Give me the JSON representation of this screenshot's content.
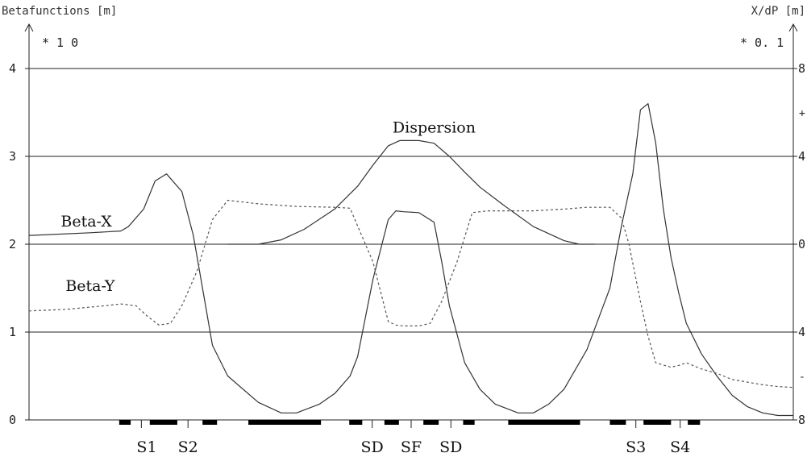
{
  "chart_data": {
    "type": "line",
    "title": "",
    "left_axis": {
      "label": "Betafunctions [m]",
      "multiplier": "* 1 0",
      "ylim": [
        0,
        4.4
      ],
      "ticks": [
        "0",
        "1",
        "2",
        "3",
        "4"
      ]
    },
    "right_axis": {
      "label": "X/dP [m]",
      "multiplier": "* 0. 1",
      "ticks": [
        "8",
        "4",
        "0",
        "4",
        "8"
      ],
      "minor_marks": [
        "+",
        "-"
      ]
    },
    "grid": true,
    "xlim": [
      0,
      100
    ],
    "series": [
      {
        "name": "Beta-X",
        "style": "solid",
        "x": [
          0,
          8,
          12,
          13,
          15,
          16.5,
          18,
          20,
          21.5,
          22.7,
          24,
          26,
          30,
          33,
          35,
          38,
          40,
          42,
          43,
          45,
          47,
          48,
          49,
          51,
          53,
          54,
          55,
          57,
          59,
          61,
          64,
          66,
          68,
          70,
          73,
          76,
          77.5,
          79,
          80,
          81,
          82,
          83,
          84,
          85,
          86,
          88,
          90,
          92,
          94,
          96,
          98,
          100
        ],
        "y": [
          2.1,
          2.13,
          2.15,
          2.2,
          2.4,
          2.72,
          2.8,
          2.6,
          2.1,
          1.5,
          0.85,
          0.5,
          0.2,
          0.08,
          0.08,
          0.18,
          0.3,
          0.5,
          0.72,
          1.6,
          2.28,
          2.38,
          2.37,
          2.36,
          2.25,
          1.8,
          1.3,
          0.65,
          0.35,
          0.18,
          0.08,
          0.08,
          0.18,
          0.35,
          0.8,
          1.5,
          2.2,
          2.8,
          3.53,
          3.6,
          3.15,
          2.4,
          1.85,
          1.45,
          1.1,
          0.75,
          0.5,
          0.28,
          0.15,
          0.08,
          0.05,
          0.05
        ]
      },
      {
        "name": "Beta-Y",
        "style": "dashed",
        "x": [
          0,
          5,
          10,
          12,
          14,
          15.5,
          17,
          18.5,
          20,
          22,
          24,
          26,
          30,
          35,
          40,
          42,
          45,
          47,
          48,
          49,
          51,
          52.5,
          54,
          56,
          58,
          60,
          63,
          66,
          70,
          73,
          76,
          77.5,
          78.5,
          80,
          81,
          82,
          84,
          85,
          86,
          88,
          90,
          92,
          94,
          96,
          98,
          100
        ],
        "y": [
          1.24,
          1.26,
          1.3,
          1.32,
          1.3,
          1.18,
          1.08,
          1.1,
          1.3,
          1.7,
          2.28,
          2.5,
          2.46,
          2.43,
          2.42,
          2.41,
          1.8,
          1.12,
          1.08,
          1.07,
          1.07,
          1.1,
          1.35,
          1.8,
          2.36,
          2.38,
          2.38,
          2.38,
          2.4,
          2.42,
          2.42,
          2.3,
          2.0,
          1.35,
          0.95,
          0.65,
          0.6,
          0.62,
          0.65,
          0.58,
          0.53,
          0.46,
          0.43,
          0.4,
          0.38,
          0.37
        ]
      },
      {
        "name": "Dispersion",
        "style": "solid",
        "x": [
          26,
          30,
          33,
          36,
          40,
          43,
          45,
          47,
          48.5,
          51,
          53,
          55,
          57,
          59,
          62,
          66,
          70,
          72,
          74
        ],
        "y": [
          2.0,
          2.0,
          2.05,
          2.17,
          2.4,
          2.66,
          2.9,
          3.12,
          3.18,
          3.18,
          3.15,
          3.0,
          2.82,
          2.65,
          2.45,
          2.2,
          2.04,
          2.0,
          2.0
        ]
      }
    ],
    "annotations": [
      {
        "text": "Dispersion",
        "x": 53,
        "y": 3.27
      },
      {
        "text": "Beta-X",
        "x": 7.5,
        "y": 2.2
      },
      {
        "text": "Beta-Y",
        "x": 8,
        "y": 1.47
      }
    ],
    "magnets": {
      "blocks": [
        [
          11.8,
          13.3
        ],
        [
          15.8,
          19.4
        ],
        [
          22.7,
          24.6
        ],
        [
          28.7,
          38.2
        ],
        [
          41.9,
          43.6
        ],
        [
          46.5,
          48.4
        ],
        [
          51.6,
          53.6
        ],
        [
          56.8,
          58.3
        ],
        [
          62.7,
          72.1
        ],
        [
          76.0,
          78.1
        ],
        [
          80.4,
          84.0
        ],
        [
          86.2,
          87.8
        ]
      ],
      "ticks": [
        14.7,
        20.8,
        44.9,
        50.0,
        55.2,
        79.4,
        85.2
      ],
      "labels": [
        {
          "text": "S1",
          "x": 15.4
        },
        {
          "text": "S2",
          "x": 20.8
        },
        {
          "text": "SD",
          "x": 44.9
        },
        {
          "text": "SF",
          "x": 50.0
        },
        {
          "text": "SD",
          "x": 55.2
        },
        {
          "text": "S3",
          "x": 79.4
        },
        {
          "text": "S4",
          "x": 85.2
        }
      ]
    }
  }
}
